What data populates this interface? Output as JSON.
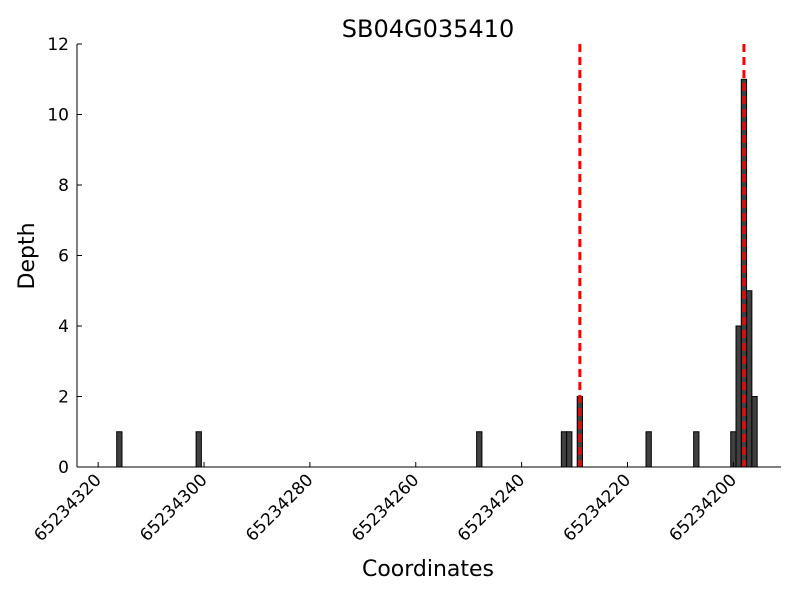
{
  "chart_data": {
    "type": "bar",
    "title": "SB04G035410",
    "xlabel": "Coordinates",
    "ylabel": "Depth",
    "x_reversed": true,
    "xlim": [
      65234324,
      65234191
    ],
    "ylim": [
      0,
      12
    ],
    "xticks": [
      65234320,
      65234300,
      65234280,
      65234260,
      65234240,
      65234220,
      65234200
    ],
    "yticks": [
      0,
      2,
      4,
      6,
      8,
      10,
      12
    ],
    "bars": [
      {
        "x": 65234316,
        "y": 1
      },
      {
        "x": 65234301,
        "y": 1
      },
      {
        "x": 65234248,
        "y": 1
      },
      {
        "x": 65234232,
        "y": 1
      },
      {
        "x": 65234231,
        "y": 1
      },
      {
        "x": 65234229,
        "y": 2
      },
      {
        "x": 65234216,
        "y": 1
      },
      {
        "x": 65234207,
        "y": 1
      },
      {
        "x": 65234200,
        "y": 1
      },
      {
        "x": 65234199,
        "y": 4
      },
      {
        "x": 65234198,
        "y": 11
      },
      {
        "x": 65234197,
        "y": 5
      },
      {
        "x": 65234196,
        "y": 2
      }
    ],
    "vertical_markers": [
      {
        "x": 65234229,
        "color": "#ff0000",
        "style": "dashed"
      },
      {
        "x": 65234198,
        "color": "#ff0000",
        "style": "dashed"
      }
    ],
    "bar_color": "#404040",
    "grid": false
  }
}
